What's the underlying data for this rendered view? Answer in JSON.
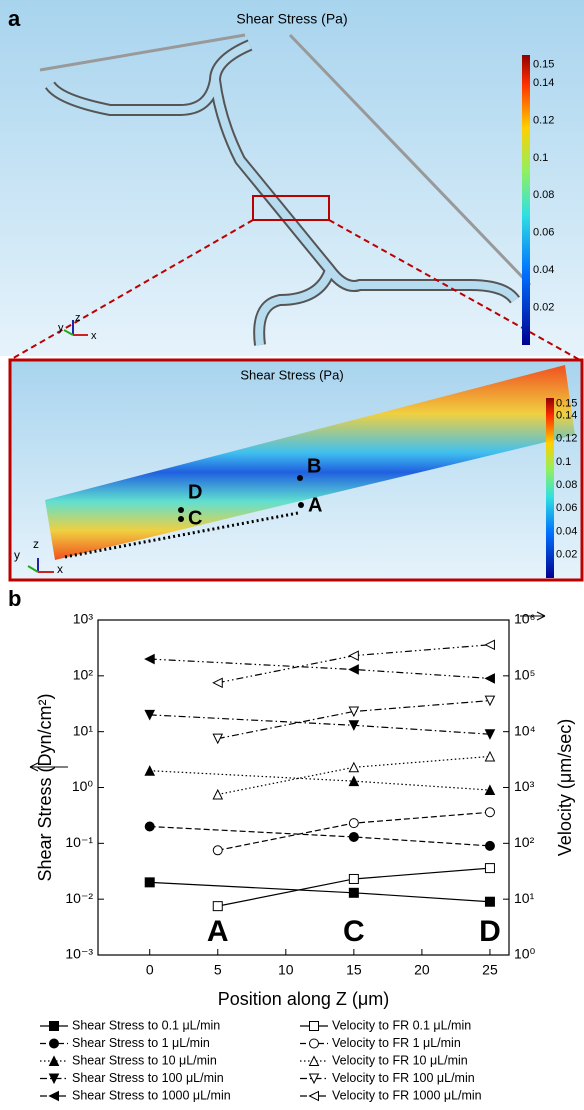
{
  "panel_a": {
    "label": "a",
    "title": "Shear Stress (Pa)",
    "colorbar_ticks": [
      0.15,
      0.14,
      0.12,
      0.1,
      0.08,
      0.06,
      0.04,
      0.02
    ],
    "axes": [
      "y",
      "z",
      "x"
    ],
    "inset": {
      "title": "Shear Stress (Pa)",
      "points": [
        "B",
        "A",
        "D",
        "C"
      ],
      "colorbar_ticks": [
        0.15,
        0.14,
        0.12,
        0.1,
        0.08,
        0.06,
        0.04,
        0.02
      ],
      "axes": [
        "y",
        "z",
        "x"
      ]
    }
  },
  "chart_data": {
    "type": "line",
    "panel_label": "b",
    "xlabel": "Position along Z (μm)",
    "ylabel": "Shear Stress (Dyn/cm²)",
    "y2label": "Velocity (μm/sec)",
    "xlim": [
      -3.8,
      26.4
    ],
    "xticks": [
      0,
      5,
      10,
      15,
      20,
      25
    ],
    "ylim": [
      0.001,
      1000
    ],
    "log_y": true,
    "yticks": [
      {
        "value": 0.001,
        "label": "10⁻³"
      },
      {
        "value": 0.01,
        "label": "10⁻²"
      },
      {
        "value": 0.1,
        "label": "10⁻¹"
      },
      {
        "value": 1,
        "label": "10⁰"
      },
      {
        "value": 10,
        "label": "10¹"
      },
      {
        "value": 100,
        "label": "10²"
      },
      {
        "value": 1000,
        "label": "10³"
      }
    ],
    "y2lim": [
      1,
      1000000
    ],
    "y2ticks": [
      {
        "value": 1,
        "label": "10⁰"
      },
      {
        "value": 10,
        "label": "10¹"
      },
      {
        "value": 100,
        "label": "10²"
      },
      {
        "value": 1000,
        "label": "10³"
      },
      {
        "value": 10000,
        "label": "10⁴"
      },
      {
        "value": 100000,
        "label": "10⁵"
      },
      {
        "value": 1000000,
        "label": "10⁶"
      }
    ],
    "annotations": [
      "A",
      "C",
      "D"
    ],
    "series": [
      {
        "name": "Shear Stress to 0.1 μL/min",
        "color": "#000",
        "marker": "square",
        "marker_fill": "#000",
        "dash": "solid",
        "x": [
          0,
          15,
          25
        ],
        "values": [
          0.02,
          0.013,
          0.009
        ]
      },
      {
        "name": "Shear Stress to 1 μL/min",
        "color": "#000",
        "marker": "circle",
        "marker_fill": "#000",
        "dash": "dashed",
        "x": [
          0,
          15,
          25
        ],
        "values": [
          0.2,
          0.13,
          0.09
        ]
      },
      {
        "name": "Shear Stress to 10 μL/min",
        "color": "#000",
        "marker": "up",
        "marker_fill": "#000",
        "dash": "dotted",
        "x": [
          0,
          15,
          25
        ],
        "values": [
          2,
          1.3,
          0.9
        ]
      },
      {
        "name": "Shear Stress to 100 μL/min",
        "color": "#000",
        "marker": "down",
        "marker_fill": "#000",
        "dash": "dashdot",
        "x": [
          0,
          15,
          25
        ],
        "values": [
          20,
          13,
          9
        ]
      },
      {
        "name": "Shear Stress to 1000 μL/min",
        "color": "#000",
        "marker": "left",
        "marker_fill": "#000",
        "dash": "dashdotdot",
        "x": [
          0,
          15,
          25
        ],
        "values": [
          200,
          130,
          90
        ]
      },
      {
        "name": "Velocity to FR 0.1 μL/min",
        "color": "#000",
        "marker": "square",
        "marker_fill": "#fff",
        "dash": "solid",
        "axis": "y2",
        "x": [
          5,
          15,
          25
        ],
        "values": [
          7.5,
          23,
          36
        ]
      },
      {
        "name": "Velocity to FR 1 μL/min",
        "color": "#000",
        "marker": "circle",
        "marker_fill": "#fff",
        "dash": "dashed",
        "axis": "y2",
        "x": [
          5,
          15,
          25
        ],
        "values": [
          75,
          230,
          360
        ]
      },
      {
        "name": "Velocity to FR 10 μL/min",
        "color": "#000",
        "marker": "up",
        "marker_fill": "#fff",
        "dash": "dotted",
        "axis": "y2",
        "x": [
          5,
          15,
          25
        ],
        "values": [
          750,
          2300,
          3600
        ]
      },
      {
        "name": "Velocity to FR 100 μL/min",
        "color": "#000",
        "marker": "down",
        "marker_fill": "#fff",
        "dash": "dashdot",
        "axis": "y2",
        "x": [
          5,
          15,
          25
        ],
        "values": [
          7500,
          23000,
          36000
        ]
      },
      {
        "name": "Velocity to FR 1000 μL/min",
        "color": "#000",
        "marker": "left",
        "marker_fill": "#fff",
        "dash": "dashdotdot",
        "axis": "y2",
        "x": [
          5,
          15,
          25
        ],
        "values": [
          75000,
          230000,
          360000
        ]
      }
    ]
  }
}
